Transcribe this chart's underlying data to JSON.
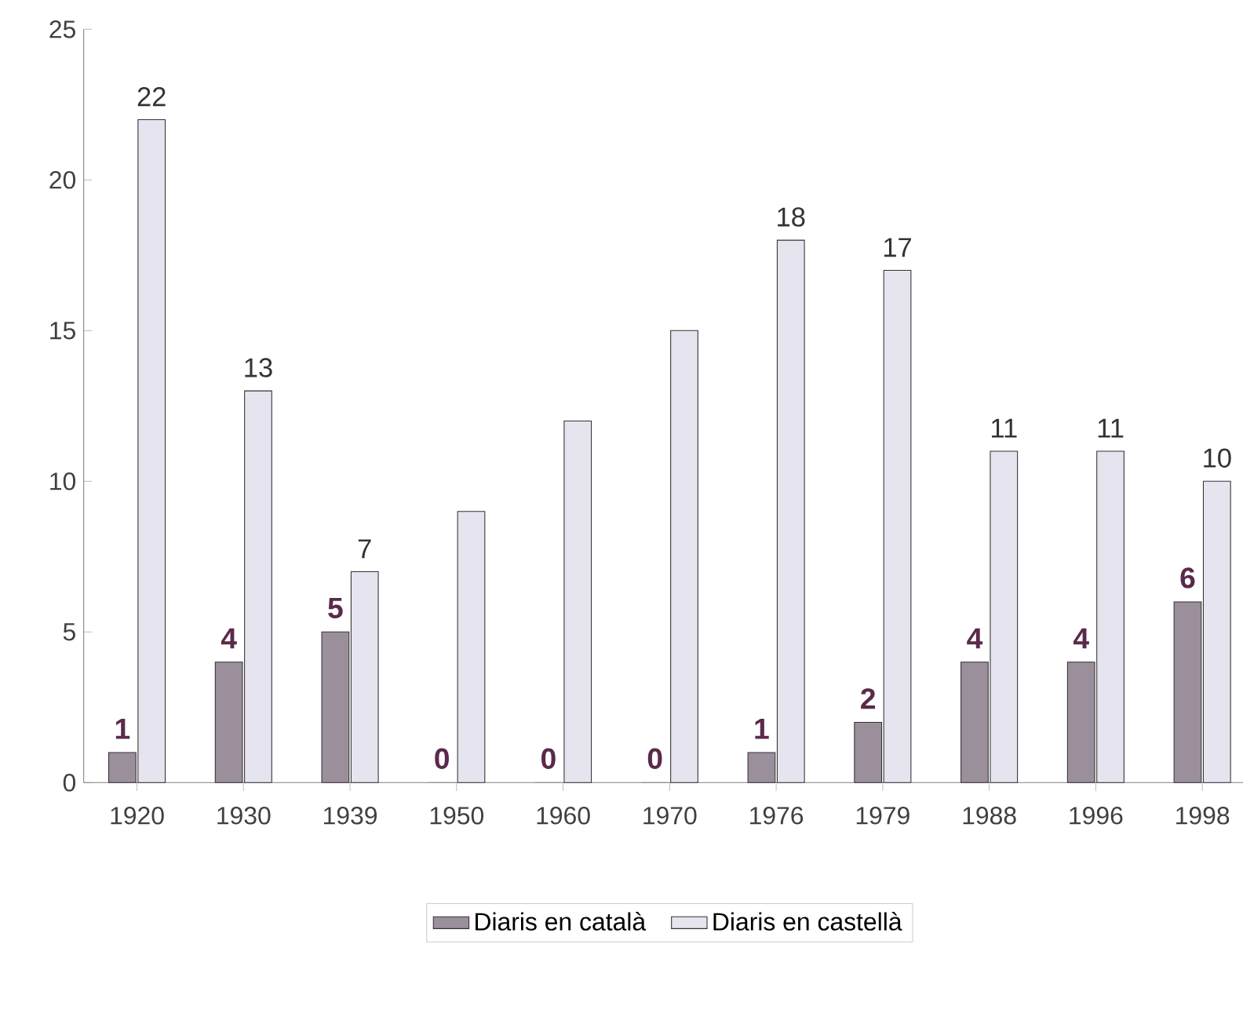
{
  "chart_data": {
    "type": "bar",
    "categories": [
      "1920",
      "1930",
      "1939",
      "1950",
      "1960",
      "1970",
      "1976",
      "1979",
      "1988",
      "1996",
      "1998"
    ],
    "series": [
      {
        "name": "Diaris en català",
        "color": "#9c8f9c",
        "values": [
          1,
          4,
          5,
          0,
          0,
          0,
          1,
          2,
          4,
          4,
          6
        ],
        "value_labels": [
          "1",
          "4",
          "5",
          "0",
          "0",
          "0",
          "1",
          "2",
          "4",
          "4",
          "6"
        ]
      },
      {
        "name": "Diaris en castellà",
        "color": "#e6e4ee",
        "values": [
          22,
          13,
          7,
          9,
          12,
          15,
          18,
          17,
          11,
          11,
          10
        ],
        "value_labels": [
          "22",
          "13",
          "7",
          null,
          null,
          null,
          "18",
          "17",
          "11",
          "11",
          "10"
        ]
      }
    ],
    "ylim": [
      0,
      25
    ],
    "yticks": [
      0,
      5,
      10,
      15,
      20,
      25
    ],
    "grid": false,
    "legend": "bottom"
  }
}
